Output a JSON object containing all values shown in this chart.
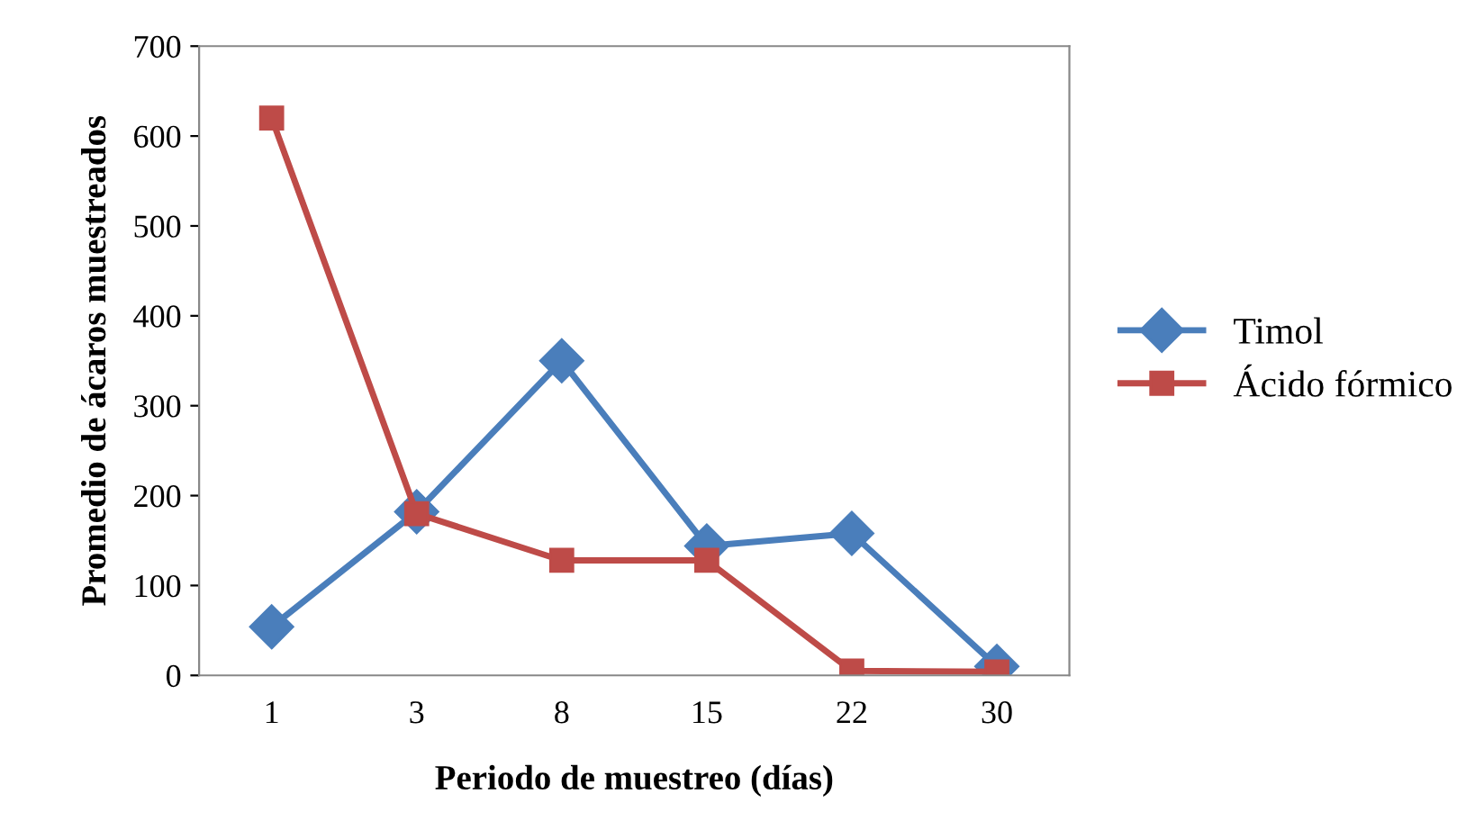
{
  "chart_data": {
    "type": "line",
    "xlabel": "Periodo de muestreo (días)",
    "ylabel": "Promedio de ácaros muestreados",
    "categories": [
      "1",
      "3",
      "8",
      "15",
      "22",
      "30"
    ],
    "series": [
      {
        "name": "Timol",
        "color": "#4a7ebb",
        "marker": "diamond",
        "values": [
          54,
          182,
          350,
          144,
          158,
          10
        ]
      },
      {
        "name": "Ácido fórmico",
        "color": "#be4b48",
        "marker": "square",
        "values": [
          620,
          180,
          128,
          128,
          5,
          4
        ]
      }
    ],
    "ylim": [
      0,
      700
    ],
    "yticks": [
      0,
      100,
      200,
      300,
      400,
      500,
      600,
      700
    ],
    "grid": false,
    "legend": "right",
    "line_style": "solid"
  }
}
